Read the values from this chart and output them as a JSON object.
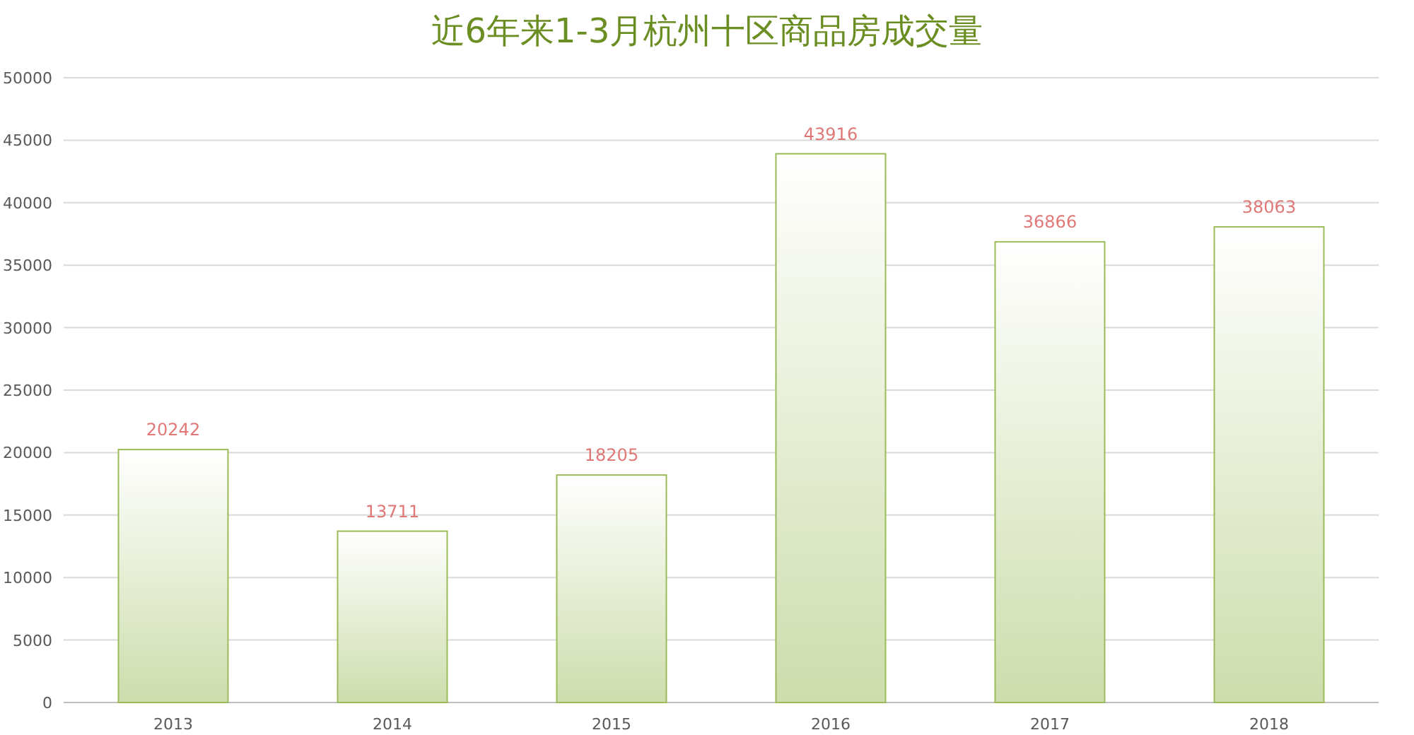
{
  "chart_data": {
    "type": "bar",
    "title": "近6年来1-3月杭州十区商品房成交量",
    "categories": [
      "2013",
      "2014",
      "2015",
      "2016",
      "2017",
      "2018"
    ],
    "values": [
      20242,
      13711,
      18205,
      43916,
      36866,
      38063
    ],
    "color": "#9bbb59",
    "ylim": [
      0,
      50000
    ],
    "yticks": [
      0,
      5000,
      10000,
      15000,
      20000,
      25000,
      30000,
      35000,
      40000,
      45000,
      50000
    ],
    "grid": "y",
    "data_labels": true
  }
}
